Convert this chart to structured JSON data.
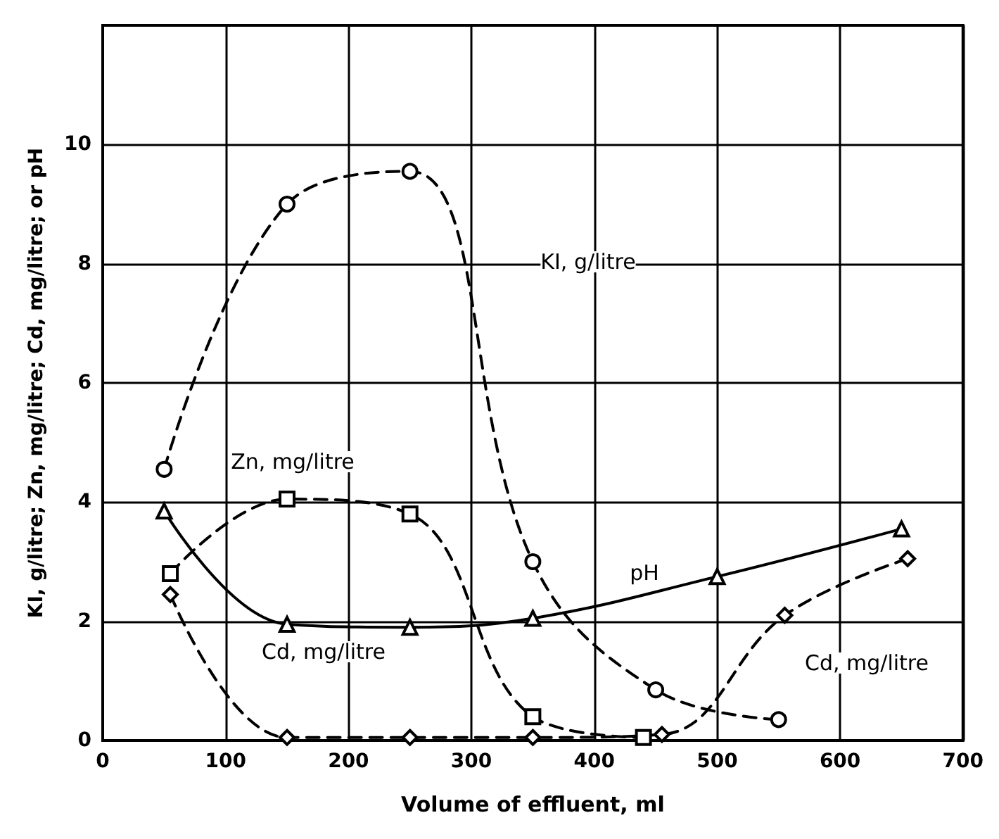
{
  "chart_data": {
    "type": "line",
    "xlabel": "Volume of effluent, ml",
    "ylabel": "KI, g/litre; Zn, mg/litre; Cd, mg/litre; or pH",
    "xlim": [
      0,
      700
    ],
    "xticks": [
      0,
      100,
      200,
      300,
      400,
      500,
      600,
      700
    ],
    "ylim": [
      0,
      12
    ],
    "yticks": [
      0,
      2,
      4,
      6,
      8,
      10
    ],
    "grid": true,
    "series": [
      {
        "color": "#000000",
        "marker": "circle",
        "line_style": "dashed",
        "x": [
          50,
          150,
          250,
          350,
          450,
          550
        ],
        "values": [
          4.55,
          9.0,
          9.55,
          3.0,
          0.85,
          0.35
        ]
      },
      {
        "color": "#000000",
        "marker": "square",
        "line_style": "dashed",
        "x": [
          55,
          150,
          250,
          350,
          440
        ],
        "values": [
          2.8,
          4.05,
          3.8,
          0.4,
          0.05
        ]
      },
      {
        "color": "#000000",
        "marker": "triangle",
        "line_style": "solid",
        "x": [
          50,
          150,
          250,
          350,
          500,
          650
        ],
        "values": [
          3.85,
          1.95,
          1.9,
          2.05,
          2.75,
          3.55
        ]
      },
      {
        "color": "#000000",
        "marker": "diamond",
        "line_style": "dashed",
        "x": [
          55,
          150,
          250,
          350,
          455,
          555,
          655
        ],
        "values": [
          2.45,
          0.05,
          0.05,
          0.05,
          0.1,
          2.1,
          3.05
        ]
      }
    ],
    "annotations": [
      "KI, g/litre",
      "Zn, mg/litre",
      "pH",
      "Cd, mg/litre",
      "Cd, mg/litre"
    ]
  }
}
